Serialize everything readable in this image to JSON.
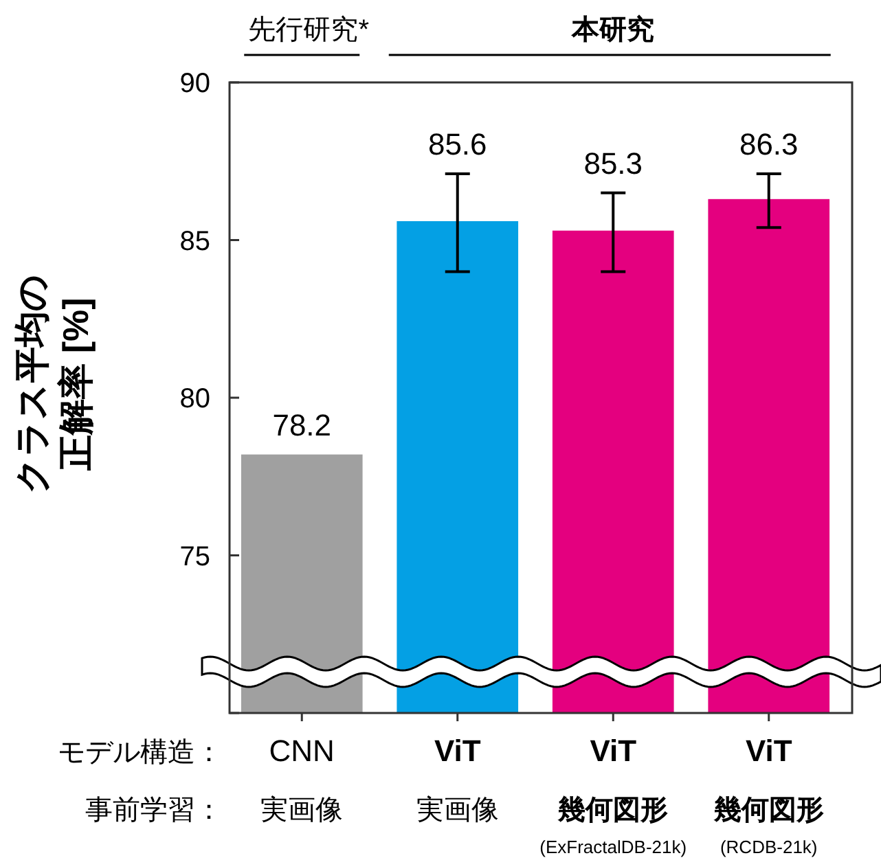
{
  "chart_data": {
    "type": "bar",
    "ylabel": "クラス平均の正解率 [%]",
    "categories": [
      "CNN",
      "ViT",
      "ViT",
      "ViT"
    ],
    "values": [
      78.2,
      85.6,
      85.3,
      86.3
    ],
    "colors": [
      "#a0a0a0",
      "#04a0e4",
      "#e4007f",
      "#e4007f"
    ],
    "errors": [
      null,
      [
        84.0,
        87.1
      ],
      [
        84.0,
        86.5
      ],
      [
        85.4,
        87.1
      ]
    ],
    "data_labels": true,
    "ylim": [
      70,
      90
    ],
    "yticks": [
      {
        "value": 70,
        "label": null
      },
      75,
      80,
      85,
      90
    ],
    "grid": false,
    "annotations": [
      "先行研究*",
      "本研究",
      "モデル構造：",
      "事前学習：",
      "実画像",
      "実画像",
      "幾何図形",
      "幾何図形",
      "(ExFractalDB-21k)",
      "(RCDB-21k)"
    ]
  }
}
